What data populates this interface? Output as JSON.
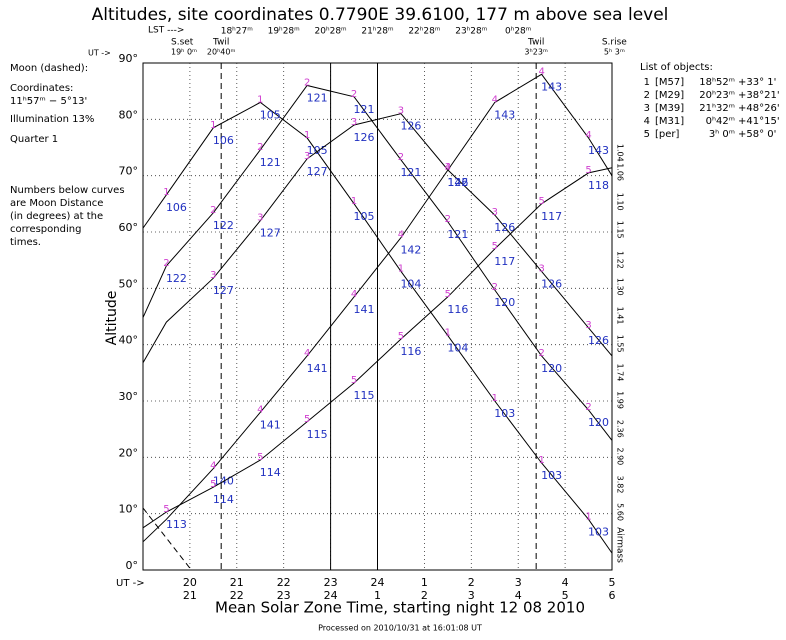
{
  "chart_data": {
    "type": "line",
    "title": "Altitudes, site coordinates    0.7790E  39.6100,  177 m above sea level",
    "x_label": "Mean Solar Zone Time, starting night 12 08 2010",
    "y_label": "Altitude",
    "y2_label": "Airmass",
    "footer": "Processed on 2010/10/31 at 16:01:08 UT",
    "x": [
      19,
      19.5,
      20.5,
      21.5,
      22.5,
      23.5,
      24.5,
      25.5,
      26.5,
      27.5,
      28.5,
      29
    ],
    "xlim": [
      19,
      29
    ],
    "ylim": [
      0,
      90
    ],
    "yticks": [
      {
        "value": 0,
        "label": "0°"
      },
      {
        "value": 10,
        "label": "10°"
      },
      {
        "value": 20,
        "label": "20°"
      },
      {
        "value": 30,
        "label": "30°"
      },
      {
        "value": 40,
        "label": "40°"
      },
      {
        "value": 50,
        "label": "50°"
      },
      {
        "value": 60,
        "label": "60°"
      },
      {
        "value": 70,
        "label": "70°"
      },
      {
        "value": 80,
        "label": "80°"
      },
      {
        "value": 90,
        "label": "90°"
      }
    ],
    "ut_prefix": "UT ->",
    "xticks": [
      20,
      21,
      22,
      23,
      24,
      {
        "value": 25,
        "label": "1"
      },
      {
        "value": 26,
        "label": "2"
      },
      {
        "value": 27,
        "label": "3"
      },
      {
        "value": 28,
        "label": "4"
      },
      {
        "value": 29,
        "label": "5"
      }
    ],
    "xticks_mean_solar": [
      {
        "value": 20,
        "label": "21"
      },
      {
        "value": 21,
        "label": "22"
      },
      {
        "value": 22,
        "label": "23"
      },
      {
        "value": 23,
        "label": "24"
      },
      {
        "value": 24,
        "label": "1"
      },
      {
        "value": 25,
        "label": "2"
      },
      {
        "value": 26,
        "label": "3"
      },
      {
        "value": 27,
        "label": "4"
      },
      {
        "value": 28,
        "label": "5"
      },
      {
        "value": 29,
        "label": "6"
      }
    ],
    "y2ticks": [
      1.04,
      {
        "value": 1.06,
        "label": "1.06"
      },
      {
        "value": 1.1,
        "label": "1.10"
      },
      1.15,
      1.22,
      {
        "value": 1.3,
        "label": "1.30"
      },
      1.41,
      1.55,
      1.74,
      1.99,
      2.36,
      {
        "value": 2.9,
        "label": "2.90"
      },
      3.82,
      {
        "value": 5.6,
        "label": "5.60"
      }
    ],
    "lst_header": "LST --->",
    "lst_ticks": [
      {
        "value": 21,
        "label": "18ʰ27ᵐ"
      },
      {
        "value": 22,
        "label": "19ʰ28ᵐ"
      },
      {
        "value": 23,
        "label": "20ʰ28ᵐ"
      },
      {
        "value": 24,
        "label": "21ʰ28ᵐ"
      },
      {
        "value": 25,
        "label": "22ʰ28ᵐ"
      },
      {
        "value": 26,
        "label": "23ʰ28ᵐ"
      },
      {
        "value": 27,
        "label": "0ʰ28ᵐ"
      }
    ],
    "events": [
      {
        "name": "S.set",
        "time": "19ʰ 0ᵐ",
        "x": 19,
        "dashed": false
      },
      {
        "name": "Twil",
        "time": "20ʰ40ᵐ",
        "x": 20.667,
        "dashed": true
      },
      {
        "name": "Twil",
        "time": "3ʰ23ᵐ",
        "x": 27.383,
        "dashed": true
      },
      {
        "name": "S.rise",
        "time": "5ʰ 3ᵐ",
        "x": 29.05,
        "dashed": false
      }
    ],
    "vlines": [
      23,
      24
    ],
    "legend_title": "List of objects:",
    "series": [
      {
        "id": "1",
        "name": "[M57]",
        "ra": "18ʰ52ᵐ",
        "dec": "+33° 1'",
        "color": "#000000",
        "values": [
          60.7,
          66.6,
          78.5,
          83,
          76.7,
          65,
          53,
          41.6,
          30,
          19,
          9,
          3
        ],
        "distances": [
          null,
          106,
          106,
          105,
          105,
          105,
          104,
          104,
          103,
          103,
          103,
          null
        ]
      },
      {
        "id": "2",
        "name": "[M29]",
        "ra": "20ʰ23ᵐ",
        "dec": "+38°21'",
        "color": "#000000",
        "values": [
          44.8,
          54,
          63.4,
          74.6,
          86,
          84,
          72.8,
          61.8,
          49.7,
          38,
          28.4,
          23
        ],
        "distances": [
          null,
          122,
          122,
          121,
          121,
          121,
          121,
          121,
          120,
          120,
          120,
          null
        ]
      },
      {
        "id": "3",
        "name": "[M39]",
        "ra": "21ʰ32ᵐ",
        "dec": "+48°26'",
        "color": "#000000",
        "values": [
          36.8,
          44,
          51.8,
          62,
          73,
          79,
          81,
          71,
          63,
          53,
          43,
          38
        ],
        "distances": [
          null,
          null,
          127,
          127,
          127,
          126,
          126,
          126,
          126,
          126,
          126,
          null
        ]
      },
      {
        "id": "4",
        "name": "[M31]",
        "ra": "0ʰ42ᵐ",
        "dec": "+41°15'",
        "color": "#000000",
        "values": [
          5,
          9,
          18,
          28,
          38,
          48.5,
          59,
          71,
          83,
          88,
          76.7,
          70
        ],
        "distances": [
          null,
          null,
          140,
          141,
          141,
          141,
          142,
          142,
          143,
          143,
          143,
          null
        ]
      },
      {
        "id": "5",
        "name": "[per]",
        "ra": "3ʰ 0ᵐ",
        "dec": "+58° 0'",
        "color": "#000000",
        "values": [
          7.5,
          10.3,
          14.7,
          19.5,
          26.3,
          33.2,
          41,
          48.5,
          57,
          65,
          70.5,
          71.4
        ],
        "distances": [
          null,
          113,
          114,
          114,
          115,
          115,
          116,
          116,
          117,
          117,
          118,
          null
        ]
      }
    ],
    "moon": {
      "label": "Moon (dashed):",
      "coord_label": "Coordinates:",
      "coords": "11ʰ57ᵐ − 5°13'",
      "illumination": "Illumination  13%",
      "quarter": "Quarter      1",
      "x": [
        19,
        20.03
      ],
      "values": [
        11,
        0
      ]
    },
    "note": [
      "Numbers below curves",
      "are Moon Distance",
      "(in degrees) at the",
      "corresponding",
      "times."
    ]
  }
}
